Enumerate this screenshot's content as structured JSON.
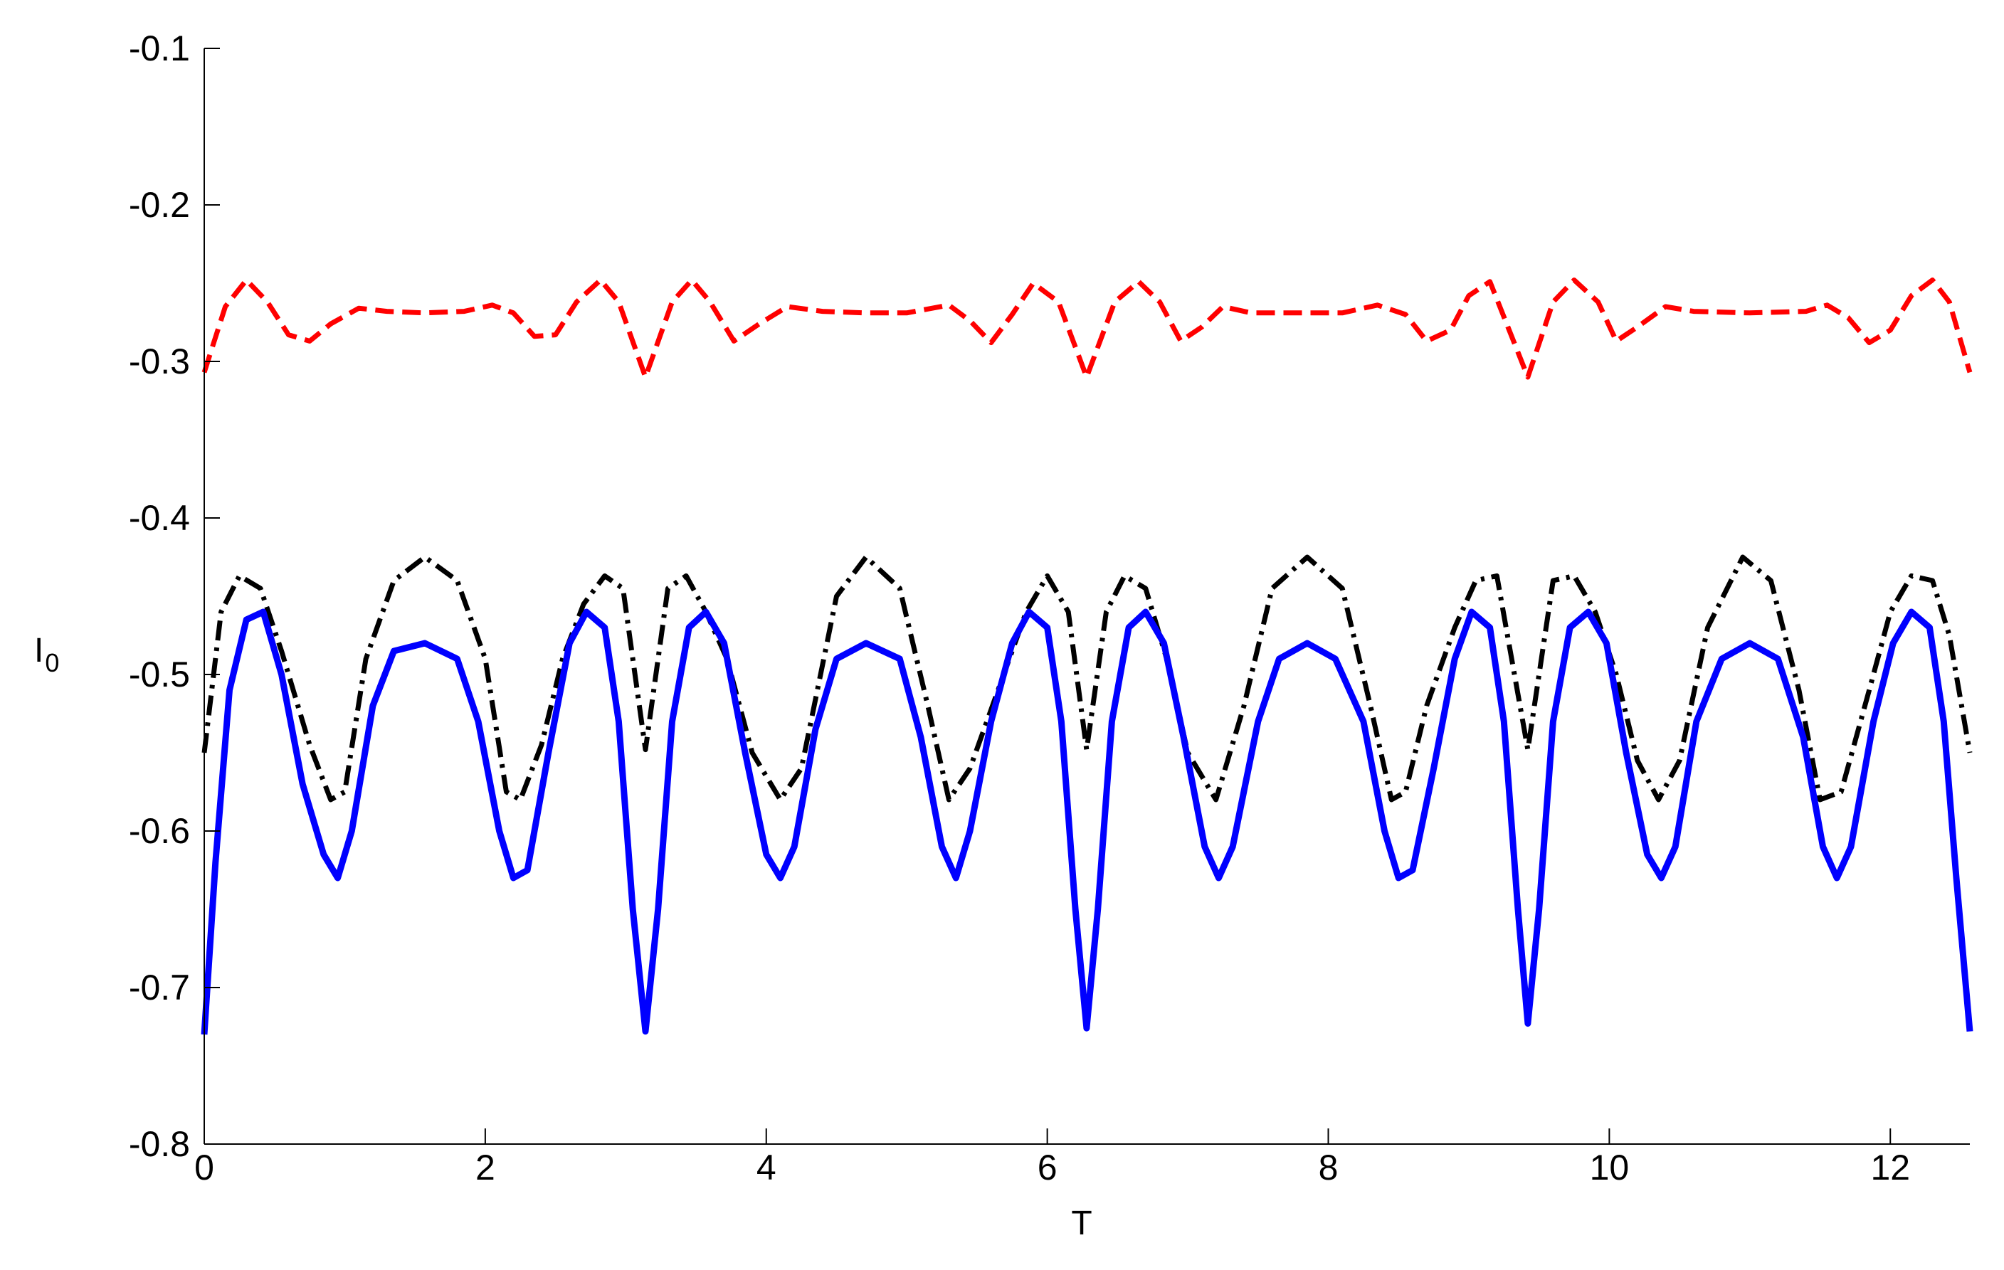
{
  "chart_data": {
    "type": "line",
    "xlabel": "T",
    "ylabel": "I",
    "ylabel_subscript": "0",
    "xlim": [
      0,
      12.566
    ],
    "ylim": [
      -0.8,
      -0.1
    ],
    "xticks": [
      0,
      2,
      4,
      6,
      8,
      10,
      12
    ],
    "xtick_labels": [
      "0",
      "2",
      "4",
      "6",
      "8",
      "10",
      "12"
    ],
    "yticks": [
      -0.8,
      -0.7,
      -0.6,
      -0.5,
      -0.4,
      -0.3,
      -0.2,
      -0.1
    ],
    "ytick_labels": [
      "-0.8",
      "-0.7",
      "-0.6",
      "-0.5",
      "-0.4",
      "-0.3",
      "-0.2",
      "-0.1"
    ],
    "grid": false,
    "series": [
      {
        "style": "dashed",
        "color": "#ff0000",
        "x": [
          0,
          0.15,
          0.3,
          0.45,
          0.6,
          0.75,
          0.9,
          1.1,
          1.3,
          1.57,
          1.85,
          2.05,
          2.2,
          2.35,
          2.5,
          2.65,
          2.82,
          2.95,
          3.14,
          3.33,
          3.47,
          3.6,
          3.77,
          3.95,
          4.15,
          4.4,
          4.71,
          5.0,
          5.3,
          5.45,
          5.6,
          5.75,
          5.9,
          6.08,
          6.28,
          6.48,
          6.65,
          6.8,
          6.95,
          7.1,
          7.25,
          7.45,
          7.7,
          7.85,
          8.1,
          8.35,
          8.55,
          8.7,
          8.87,
          9.0,
          9.15,
          9.42,
          9.6,
          9.75,
          9.92,
          10.05,
          10.2,
          10.4,
          10.6,
          11.0,
          11.4,
          11.55,
          11.7,
          11.85,
          12.0,
          12.15,
          12.3,
          12.42,
          12.566
        ],
        "y": [
          -0.307,
          -0.265,
          -0.248,
          -0.262,
          -0.283,
          -0.287,
          -0.276,
          -0.266,
          -0.268,
          -0.269,
          -0.268,
          -0.264,
          -0.269,
          -0.284,
          -0.283,
          -0.262,
          -0.248,
          -0.262,
          -0.31,
          -0.262,
          -0.248,
          -0.262,
          -0.287,
          -0.276,
          -0.265,
          -0.268,
          -0.269,
          -0.269,
          -0.264,
          -0.274,
          -0.288,
          -0.27,
          -0.25,
          -0.262,
          -0.31,
          -0.262,
          -0.249,
          -0.262,
          -0.287,
          -0.278,
          -0.265,
          -0.269,
          -0.269,
          -0.269,
          -0.269,
          -0.264,
          -0.27,
          -0.287,
          -0.28,
          -0.258,
          -0.249,
          -0.31,
          -0.262,
          -0.248,
          -0.262,
          -0.287,
          -0.278,
          -0.265,
          -0.268,
          -0.269,
          -0.268,
          -0.264,
          -0.272,
          -0.288,
          -0.28,
          -0.258,
          -0.248,
          -0.262,
          -0.307
        ]
      },
      {
        "style": "dash-dot",
        "color": "#000000",
        "x": [
          0,
          0.12,
          0.25,
          0.4,
          0.55,
          0.75,
          0.9,
          1.0,
          1.15,
          1.35,
          1.57,
          1.8,
          2.0,
          2.15,
          2.25,
          2.4,
          2.55,
          2.7,
          2.85,
          2.98,
          3.14,
          3.3,
          3.43,
          3.57,
          3.72,
          3.9,
          4.1,
          4.25,
          4.5,
          4.71,
          4.95,
          5.15,
          5.3,
          5.45,
          5.65,
          5.85,
          6.0,
          6.15,
          6.28,
          6.42,
          6.55,
          6.7,
          6.85,
          7.0,
          7.2,
          7.4,
          7.6,
          7.85,
          8.1,
          8.3,
          8.45,
          8.55,
          8.7,
          8.9,
          9.05,
          9.2,
          9.42,
          9.6,
          9.75,
          9.9,
          10.05,
          10.2,
          10.35,
          10.5,
          10.7,
          10.95,
          11.15,
          11.35,
          11.5,
          11.65,
          11.85,
          12.0,
          12.15,
          12.3,
          12.42,
          12.566
        ],
        "y": [
          -0.55,
          -0.46,
          -0.437,
          -0.445,
          -0.485,
          -0.545,
          -0.58,
          -0.575,
          -0.49,
          -0.44,
          -0.425,
          -0.44,
          -0.49,
          -0.575,
          -0.58,
          -0.545,
          -0.49,
          -0.455,
          -0.437,
          -0.445,
          -0.548,
          -0.445,
          -0.437,
          -0.46,
          -0.49,
          -0.55,
          -0.58,
          -0.56,
          -0.45,
          -0.425,
          -0.445,
          -0.52,
          -0.58,
          -0.56,
          -0.51,
          -0.46,
          -0.437,
          -0.46,
          -0.548,
          -0.46,
          -0.437,
          -0.445,
          -0.49,
          -0.55,
          -0.58,
          -0.52,
          -0.445,
          -0.425,
          -0.445,
          -0.52,
          -0.58,
          -0.575,
          -0.52,
          -0.47,
          -0.44,
          -0.437,
          -0.548,
          -0.44,
          -0.437,
          -0.46,
          -0.5,
          -0.555,
          -0.58,
          -0.555,
          -0.47,
          -0.425,
          -0.44,
          -0.51,
          -0.58,
          -0.575,
          -0.51,
          -0.46,
          -0.437,
          -0.44,
          -0.475,
          -0.55
        ]
      },
      {
        "style": "solid",
        "color": "#0000ff",
        "x": [
          0,
          0.08,
          0.18,
          0.3,
          0.42,
          0.55,
          0.7,
          0.85,
          0.95,
          1.05,
          1.2,
          1.35,
          1.57,
          1.8,
          1.95,
          2.1,
          2.2,
          2.3,
          2.45,
          2.6,
          2.72,
          2.85,
          2.95,
          3.05,
          3.14,
          3.23,
          3.33,
          3.45,
          3.57,
          3.7,
          3.85,
          4.0,
          4.1,
          4.2,
          4.35,
          4.5,
          4.71,
          4.95,
          5.1,
          5.25,
          5.35,
          5.45,
          5.6,
          5.75,
          5.87,
          6.0,
          6.1,
          6.2,
          6.28,
          6.36,
          6.46,
          6.58,
          6.7,
          6.83,
          6.97,
          7.12,
          7.22,
          7.32,
          7.5,
          7.65,
          7.85,
          8.05,
          8.25,
          8.4,
          8.5,
          8.6,
          8.75,
          8.9,
          9.02,
          9.15,
          9.25,
          9.35,
          9.42,
          9.5,
          9.6,
          9.72,
          9.85,
          9.98,
          10.12,
          10.27,
          10.37,
          10.47,
          10.62,
          10.8,
          11.0,
          11.2,
          11.38,
          11.52,
          11.62,
          11.72,
          11.88,
          12.02,
          12.15,
          12.28,
          12.38,
          12.47,
          12.566
        ],
        "y": [
          -0.73,
          -0.62,
          -0.51,
          -0.465,
          -0.46,
          -0.5,
          -0.57,
          -0.615,
          -0.63,
          -0.6,
          -0.52,
          -0.485,
          -0.48,
          -0.49,
          -0.53,
          -0.6,
          -0.63,
          -0.625,
          -0.55,
          -0.48,
          -0.46,
          -0.47,
          -0.53,
          -0.65,
          -0.728,
          -0.65,
          -0.53,
          -0.47,
          -0.46,
          -0.48,
          -0.55,
          -0.615,
          -0.63,
          -0.61,
          -0.535,
          -0.49,
          -0.48,
          -0.49,
          -0.54,
          -0.61,
          -0.63,
          -0.6,
          -0.53,
          -0.48,
          -0.46,
          -0.47,
          -0.53,
          -0.65,
          -0.726,
          -0.65,
          -0.53,
          -0.47,
          -0.46,
          -0.48,
          -0.54,
          -0.61,
          -0.63,
          -0.61,
          -0.53,
          -0.49,
          -0.48,
          -0.49,
          -0.53,
          -0.6,
          -0.63,
          -0.625,
          -0.56,
          -0.49,
          -0.46,
          -0.47,
          -0.53,
          -0.65,
          -0.723,
          -0.65,
          -0.53,
          -0.47,
          -0.46,
          -0.48,
          -0.55,
          -0.615,
          -0.63,
          -0.61,
          -0.53,
          -0.49,
          -0.48,
          -0.49,
          -0.54,
          -0.61,
          -0.63,
          -0.61,
          -0.53,
          -0.48,
          -0.46,
          -0.47,
          -0.53,
          -0.63,
          -0.728
        ]
      }
    ]
  }
}
